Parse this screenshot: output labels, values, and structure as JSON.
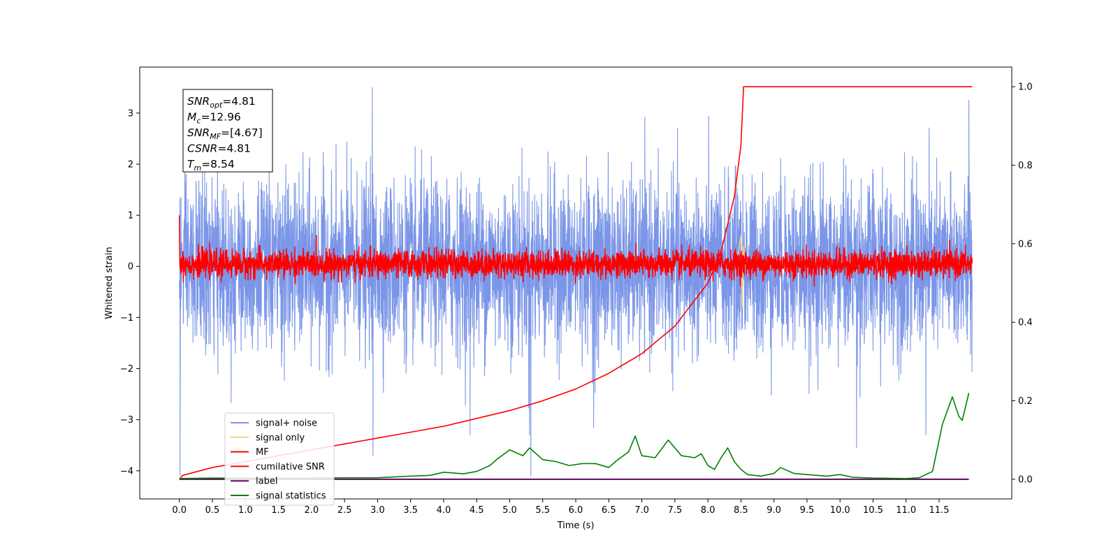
{
  "chart_data": {
    "type": "line",
    "title": "",
    "xlabel": "Time (s)",
    "ylabel": "Whitened strain",
    "xlim": [
      -0.6,
      12.6
    ],
    "ylim": [
      -4.55,
      3.9
    ],
    "y2lim": [
      -0.05,
      1.05
    ],
    "xticks": [
      0.0,
      0.5,
      1.0,
      1.5,
      2.0,
      2.5,
      3.0,
      3.5,
      4.0,
      4.5,
      5.0,
      5.5,
      6.0,
      6.5,
      7.0,
      7.5,
      8.0,
      8.5,
      9.0,
      9.5,
      10.0,
      10.5,
      11.0,
      11.5
    ],
    "xtick_labels": [
      "0.0",
      "0.5",
      "1.0",
      "1.5",
      "2.0",
      "2.5",
      "3.0",
      "3.5",
      "4.0",
      "4.5",
      "5.0",
      "5.5",
      "6.0",
      "6.5",
      "7.0",
      "7.5",
      "8.0",
      "8.5",
      "9.0",
      "9.5",
      "10.0",
      "10.5",
      "11.0",
      "11.5"
    ],
    "yticks": [
      -4,
      -3,
      -2,
      -1,
      0,
      1,
      2,
      3
    ],
    "ytick_labels": [
      "−4",
      "−3",
      "−2",
      "−1",
      "0",
      "1",
      "2",
      "3"
    ],
    "y2ticks": [
      0.0,
      0.2,
      0.4,
      0.6,
      0.8,
      1.0
    ],
    "y2tick_labels": [
      "0.0",
      "0.2",
      "0.4",
      "0.6",
      "0.8",
      "1.0"
    ],
    "grid": false,
    "legend_position": "lower-left",
    "legend": [
      {
        "label": "signal+ noise",
        "color": "#7b96e8"
      },
      {
        "label": "signal only",
        "color": "#f7d088"
      },
      {
        "label": "MF",
        "color": "#ff0000"
      },
      {
        "label": "cumilative SNR",
        "color": "#ff0000"
      },
      {
        "label": "label",
        "color": "#5a0a5a"
      },
      {
        "label": "signal statistics",
        "color": "#008000"
      }
    ],
    "annotation": {
      "lines": [
        {
          "base": "SNR",
          "sub": "opt",
          "value": "=4.81"
        },
        {
          "base": "M",
          "sub": "c",
          "value": "=12.96"
        },
        {
          "base": "SNR",
          "sub": "MF",
          "value": "=[4.67]"
        },
        {
          "base": "CSNR",
          "sub": "",
          "value": "=4.81"
        },
        {
          "base": "T",
          "sub": "m",
          "value": "=8.54"
        }
      ]
    },
    "series": [
      {
        "name": "signal+ noise",
        "axis": "left",
        "color": "#7b96e8",
        "description_values": {
          "x_start": 0.0,
          "x_end": 12.0,
          "typical_range": [
            -2.0,
            2.0
          ],
          "max": 3.5,
          "min": -4.1
        }
      },
      {
        "name": "signal only",
        "axis": "left",
        "color": "#f7d088",
        "x": [
          8.4,
          8.45,
          8.5,
          8.52,
          8.54,
          8.56
        ],
        "y": [
          0.0,
          0.2,
          0.6,
          -0.8,
          0.4,
          0.0
        ]
      },
      {
        "name": "MF",
        "axis": "left",
        "color": "#ff0000",
        "description_values": {
          "x_start": 0.0,
          "x_end": 12.0,
          "typical_range": [
            -0.35,
            0.45
          ],
          "max": 1.0
        }
      },
      {
        "name": "cumilative SNR",
        "axis": "right",
        "color": "#ff0000",
        "x": [
          0.0,
          0.05,
          0.5,
          1.0,
          1.5,
          2.0,
          2.5,
          3.0,
          3.5,
          4.0,
          4.5,
          5.0,
          5.5,
          6.0,
          6.5,
          7.0,
          7.5,
          8.0,
          8.2,
          8.4,
          8.5,
          8.54,
          12.0
        ],
        "y": [
          0.0,
          0.01,
          0.03,
          0.045,
          0.06,
          0.075,
          0.09,
          0.105,
          0.12,
          0.135,
          0.155,
          0.175,
          0.2,
          0.23,
          0.27,
          0.32,
          0.39,
          0.5,
          0.58,
          0.72,
          0.85,
          1.0,
          1.0
        ]
      },
      {
        "name": "label",
        "axis": "right",
        "color": "#5a0a5a",
        "x": [
          0.0,
          11.95
        ],
        "y": [
          0.0,
          0.0
        ]
      },
      {
        "name": "signal statistics",
        "axis": "right",
        "color": "#008000",
        "x": [
          0.0,
          0.5,
          1.0,
          1.5,
          2.0,
          2.5,
          3.0,
          3.5,
          3.8,
          4.0,
          4.3,
          4.5,
          4.7,
          4.8,
          5.0,
          5.2,
          5.3,
          5.5,
          5.7,
          5.9,
          6.1,
          6.3,
          6.5,
          6.6,
          6.8,
          6.9,
          7.0,
          7.2,
          7.4,
          7.5,
          7.6,
          7.8,
          7.9,
          8.0,
          8.1,
          8.2,
          8.3,
          8.4,
          8.5,
          8.6,
          8.8,
          9.0,
          9.1,
          9.3,
          9.5,
          9.8,
          10.0,
          10.2,
          10.5,
          11.0,
          11.2,
          11.4,
          11.55,
          11.7,
          11.8,
          11.85,
          11.95
        ],
        "y": [
          0.002,
          0.003,
          0.003,
          0.003,
          0.003,
          0.004,
          0.004,
          0.008,
          0.01,
          0.018,
          0.014,
          0.02,
          0.035,
          0.05,
          0.075,
          0.06,
          0.08,
          0.05,
          0.045,
          0.035,
          0.04,
          0.04,
          0.03,
          0.045,
          0.07,
          0.11,
          0.06,
          0.055,
          0.1,
          0.08,
          0.06,
          0.055,
          0.065,
          0.035,
          0.025,
          0.055,
          0.08,
          0.045,
          0.025,
          0.012,
          0.008,
          0.015,
          0.03,
          0.015,
          0.012,
          0.008,
          0.012,
          0.005,
          0.003,
          0.002,
          0.004,
          0.02,
          0.14,
          0.21,
          0.16,
          0.15,
          0.22
        ]
      }
    ]
  }
}
